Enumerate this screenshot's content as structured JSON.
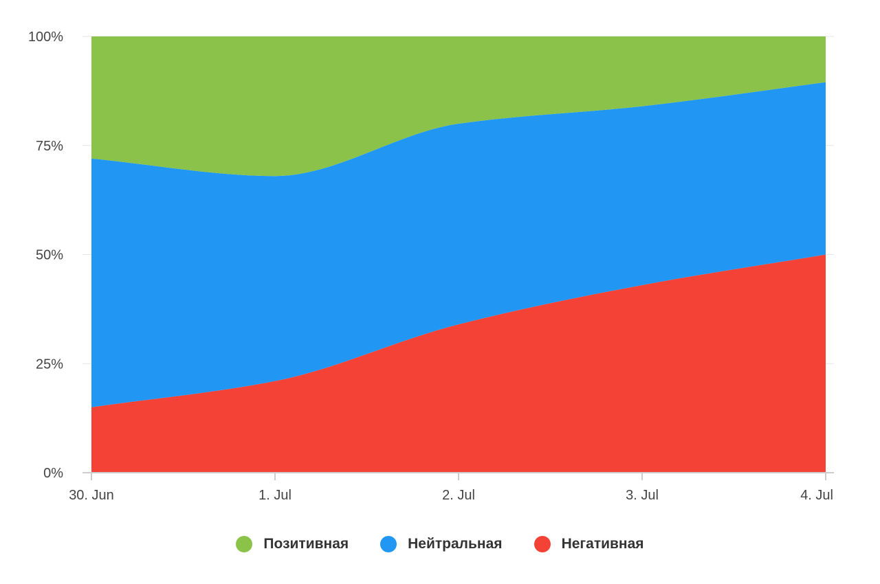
{
  "chart_data": {
    "type": "area",
    "stacking": "percent",
    "title": "",
    "xlabel": "",
    "ylabel": "",
    "x": [
      "30. Jun",
      "1. Jul",
      "2. Jul",
      "3. Jul",
      "4. Jul"
    ],
    "ylim": [
      0,
      100
    ],
    "y_ticks": [
      "0%",
      "25%",
      "50%",
      "75%",
      "100%"
    ],
    "y_tick_values": [
      0,
      25,
      50,
      75,
      100
    ],
    "grid": true,
    "legend": "bottom-center",
    "series": [
      {
        "name": "Негативная",
        "color": "#f44336",
        "values": [
          15,
          21,
          34,
          43,
          50
        ]
      },
      {
        "name": "Нейтральная",
        "color": "#2196f3",
        "values": [
          57,
          47,
          46,
          41,
          39.5
        ]
      },
      {
        "name": "Позитивная",
        "color": "#8bc34a",
        "values": [
          28,
          32,
          20,
          16,
          10.5
        ]
      }
    ]
  },
  "legend": {
    "items": [
      {
        "label": "Позитивная",
        "color": "#8bc34a"
      },
      {
        "label": "Нейтральная",
        "color": "#2196f3"
      },
      {
        "label": "Негативная",
        "color": "#f44336"
      }
    ]
  }
}
